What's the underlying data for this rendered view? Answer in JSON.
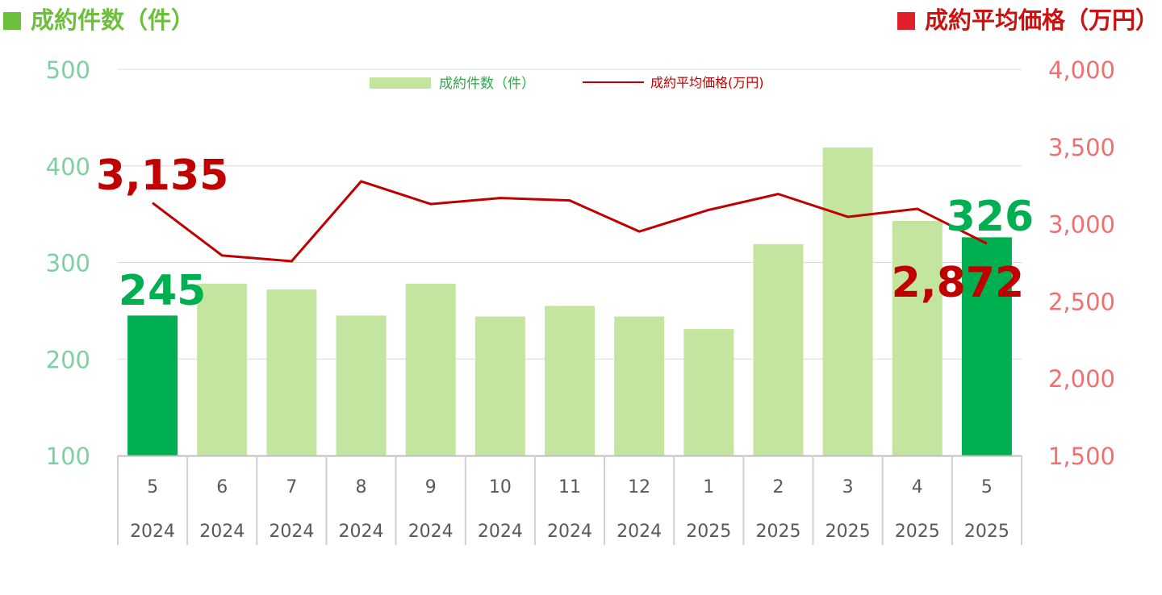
{
  "titles": {
    "left": "成約件数（件）",
    "right": "成約平均価格（万円）"
  },
  "legend": {
    "bars": "成約件数（件）",
    "line": "成約平均価格(万円)"
  },
  "colors": {
    "bar_highlight": "#00b050",
    "bar_normal": "#c4e59f",
    "line": "#c00000",
    "left_axis": "#7fd0a0",
    "right_axis": "#f07070",
    "label_highlight_bar": "#00b050",
    "label_line": "#c00000"
  },
  "chart_data": {
    "type": "bar+line",
    "categories": [
      {
        "month": "5",
        "year": "2024"
      },
      {
        "month": "6",
        "year": "2024"
      },
      {
        "month": "7",
        "year": "2024"
      },
      {
        "month": "8",
        "year": "2024"
      },
      {
        "month": "9",
        "year": "2024"
      },
      {
        "month": "10",
        "year": "2024"
      },
      {
        "month": "11",
        "year": "2024"
      },
      {
        "month": "12",
        "year": "2024"
      },
      {
        "month": "1",
        "year": "2025"
      },
      {
        "month": "2",
        "year": "2025"
      },
      {
        "month": "3",
        "year": "2025"
      },
      {
        "month": "4",
        "year": "2025"
      },
      {
        "month": "5",
        "year": "2025"
      }
    ],
    "series": [
      {
        "name": "成約件数（件）",
        "kind": "bar",
        "axis": "left",
        "values": [
          245,
          278,
          272,
          245,
          278,
          244,
          255,
          244,
          231,
          319,
          419,
          343,
          326
        ],
        "highlight": [
          true,
          false,
          false,
          false,
          false,
          false,
          false,
          false,
          false,
          false,
          false,
          false,
          true
        ]
      },
      {
        "name": "成約平均価格(万円)",
        "kind": "line",
        "axis": "right",
        "values": [
          3135,
          2795,
          2758,
          3275,
          3128,
          3167,
          3151,
          2950,
          3090,
          3193,
          3045,
          3097,
          2872
        ]
      }
    ],
    "annotations": [
      {
        "series": 0,
        "index": 0,
        "text": "245"
      },
      {
        "series": 0,
        "index": 12,
        "text": "326"
      },
      {
        "series": 1,
        "index": 0,
        "text": "3,135"
      },
      {
        "series": 1,
        "index": 12,
        "text": "2,872"
      }
    ],
    "left_axis": {
      "min": 100,
      "max": 500,
      "ticks": [
        "100",
        "200",
        "300",
        "400",
        "500"
      ]
    },
    "right_axis": {
      "min": 1500,
      "max": 4000,
      "ticks": [
        "1,500",
        "2,000",
        "2,500",
        "3,000",
        "3,500",
        "4,000"
      ]
    },
    "grid": true,
    "legend_position": "top-center"
  }
}
